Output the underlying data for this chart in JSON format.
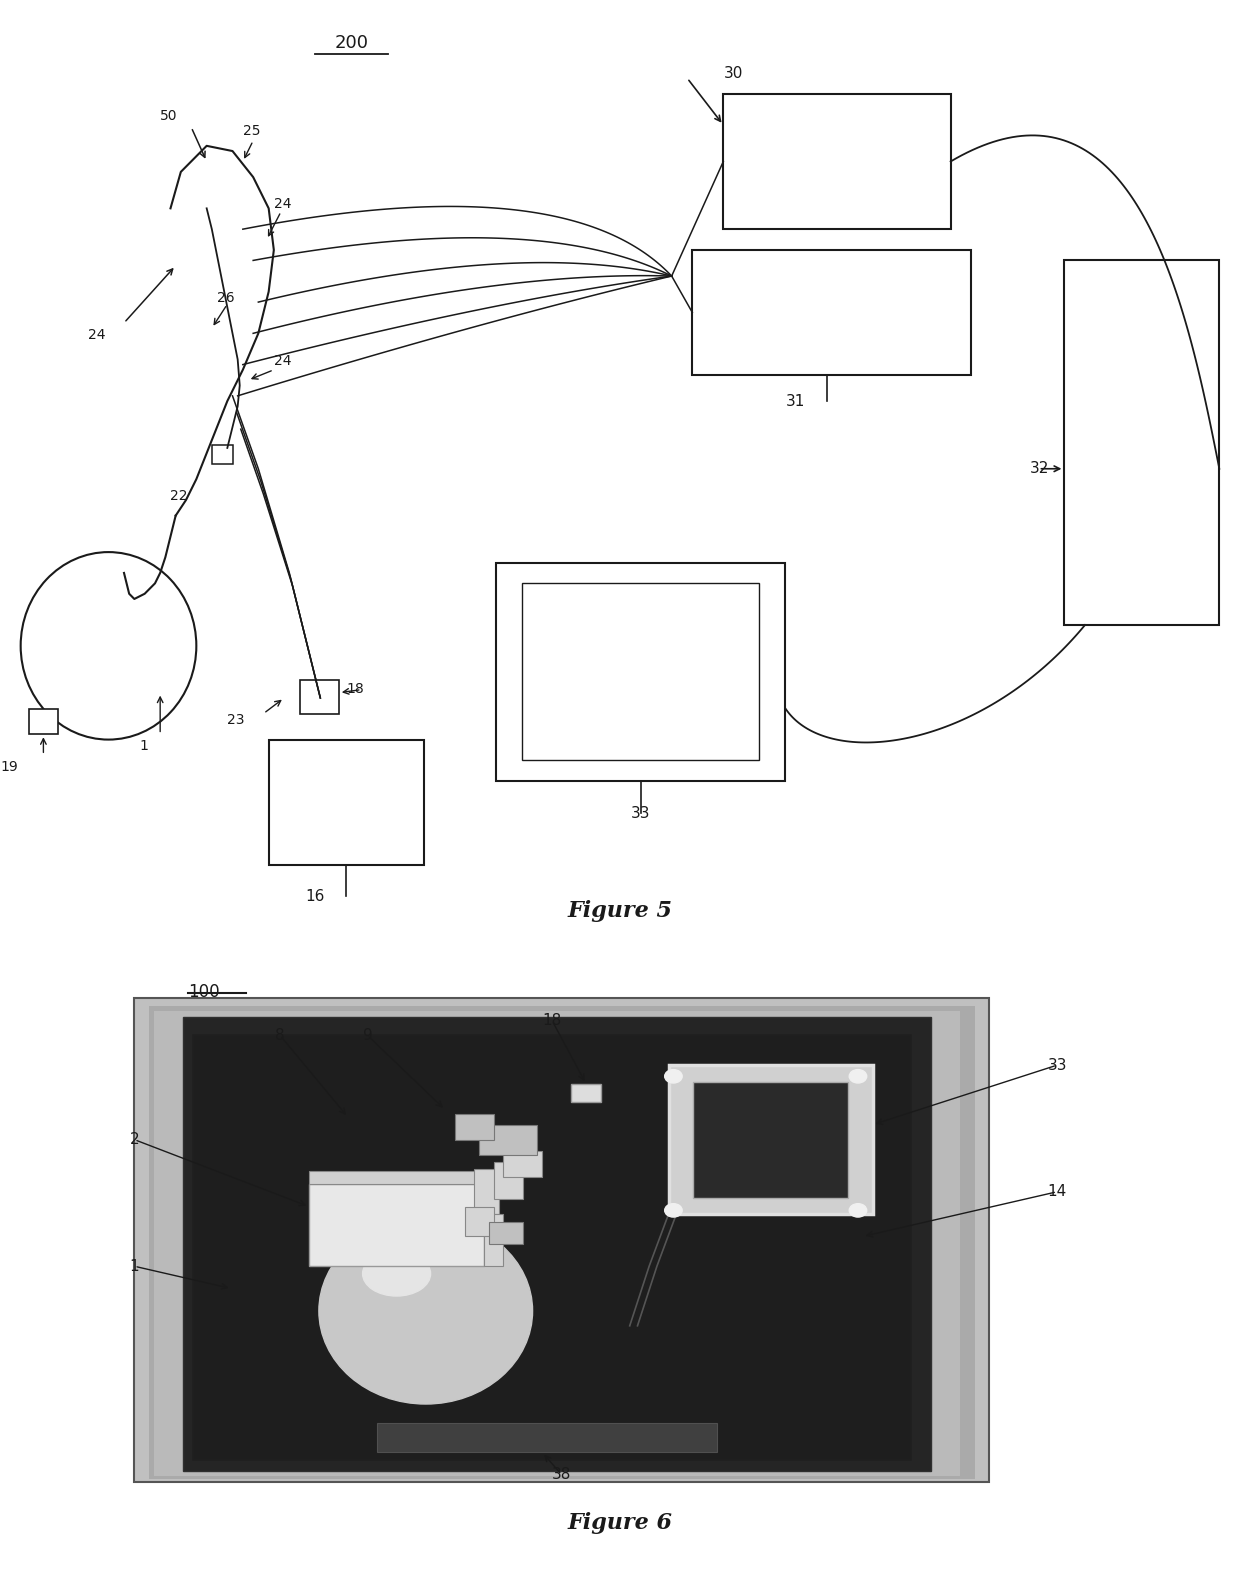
{
  "fig_width": 12.4,
  "fig_height": 15.89,
  "bg_color": "#ffffff",
  "lc": "#1a1a1a",
  "fig5_title": "Figure 5",
  "fig6_title": "Figure 6",
  "fig5_label": "200",
  "fig6_label": "100",
  "photo_bg": "#c0c0c0",
  "photo_border": "#555555",
  "dark_board": "#383838",
  "mid_gray": "#909090",
  "light_gray": "#d8d8d8",
  "white_part": "#f0f0f0"
}
